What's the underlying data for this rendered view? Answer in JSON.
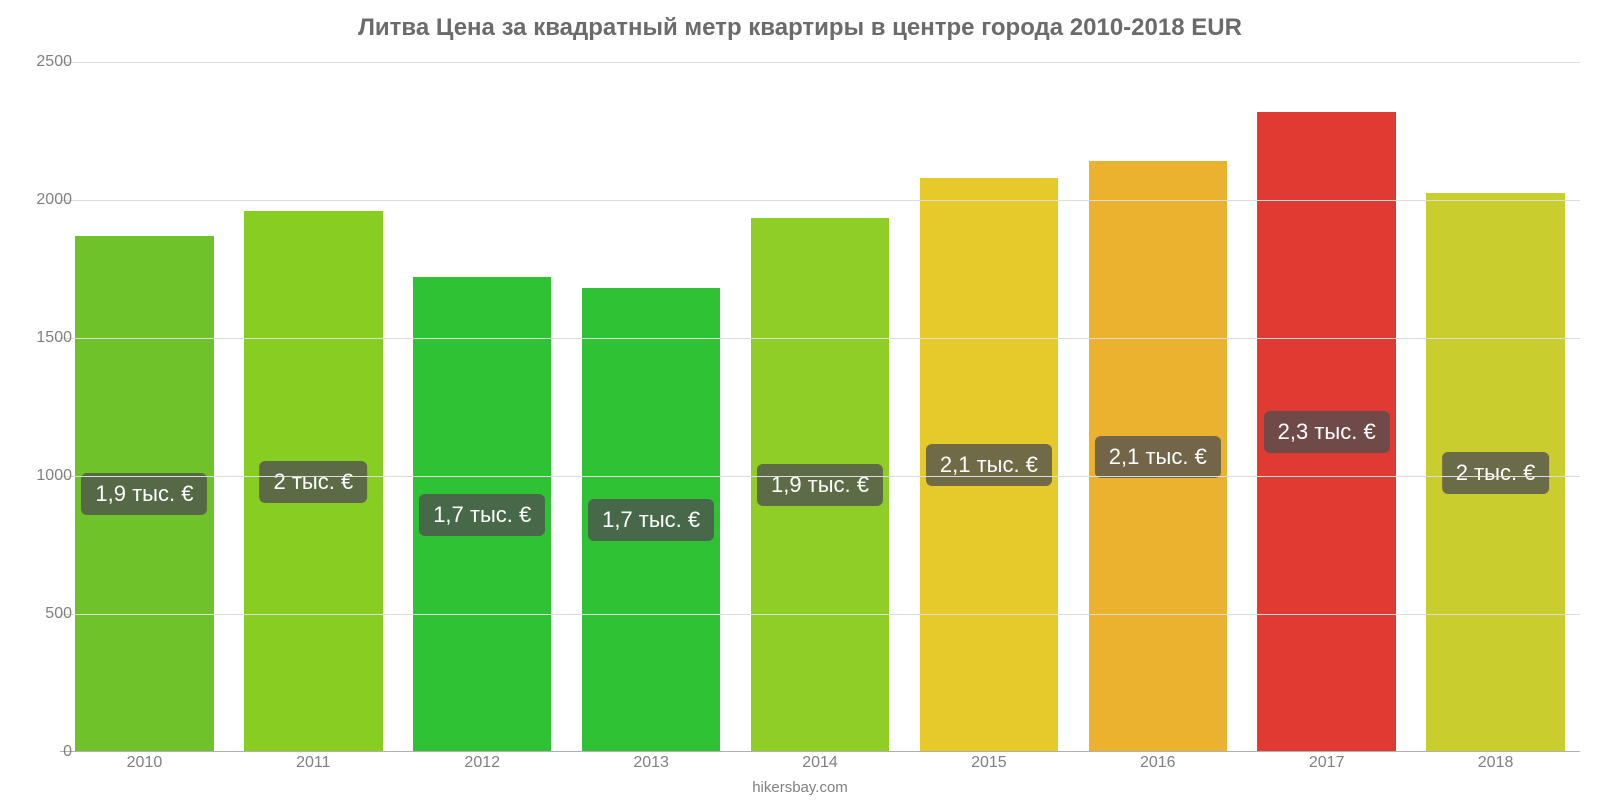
{
  "chart": {
    "type": "bar",
    "title": "Литва Цена за квадратный метр квартиры в центре города 2010-2018 EUR",
    "title_color": "#6b6b6b",
    "title_fontsize": 24,
    "attribution": "hikersbay.com",
    "attribution_fontsize": 15,
    "background_color": "#ffffff",
    "grid_color": "#dcdcdc",
    "axis_label_color": "#808080",
    "axis_fontsize": 16,
    "value_label_bg": "rgba(80,80,80,0.78)",
    "value_label_color": "#ffffff",
    "value_label_fontsize": 22,
    "ylim": [
      0,
      2500
    ],
    "ytick_step": 500,
    "yticks": [
      "0",
      "500",
      "1000",
      "1500",
      "2000",
      "2500"
    ],
    "bar_width_pct": 82,
    "categories": [
      "2010",
      "2011",
      "2012",
      "2013",
      "2014",
      "2015",
      "2016",
      "2017",
      "2018"
    ],
    "values": [
      1870,
      1960,
      1720,
      1680,
      1935,
      2080,
      2140,
      2320,
      2025
    ],
    "value_labels": [
      "1,9 тыс. €",
      "2 тыс. €",
      "1,7 тыс. €",
      "1,7 тыс. €",
      "1,9 тыс. €",
      "2,1 тыс. €",
      "2,1 тыс. €",
      "2,3 тыс. €",
      "2 тыс. €"
    ],
    "bar_colors": [
      "#6fc22a",
      "#88ce22",
      "#2fc234",
      "#2fc234",
      "#8fce26",
      "#e6c92a",
      "#eab22e",
      "#e13a33",
      "#c9ce2e"
    ]
  }
}
